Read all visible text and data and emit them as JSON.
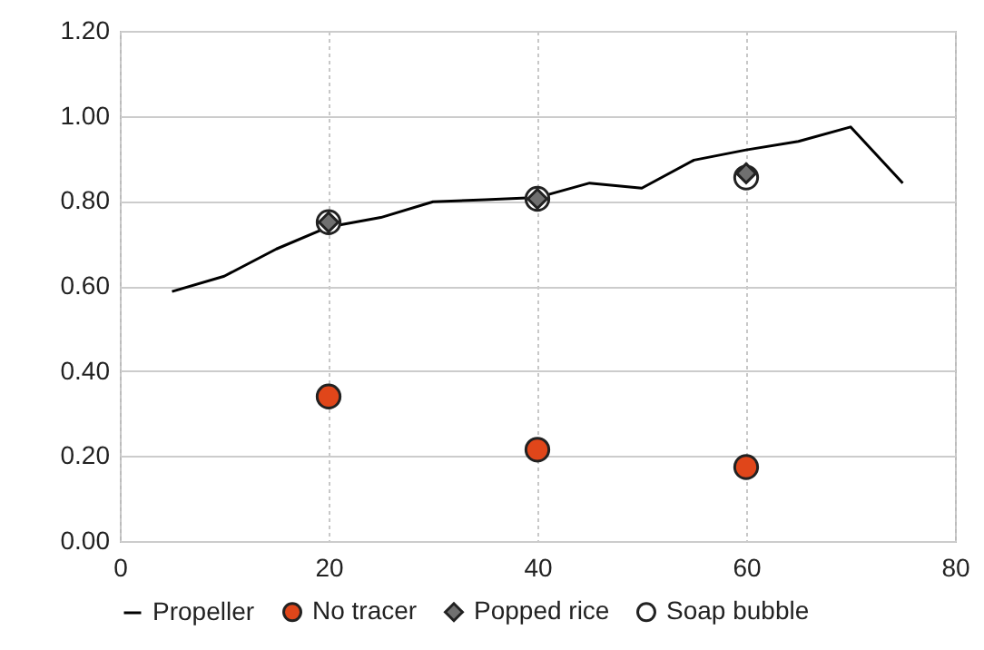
{
  "chart_data": {
    "type": "line",
    "xlim": [
      0,
      80
    ],
    "xticks": [
      0,
      20,
      40,
      60,
      80
    ],
    "ylim": [
      0,
      1.2
    ],
    "yticks": [
      {
        "value": 0,
        "label": "0.00"
      },
      {
        "value": 0.2,
        "label": "0.20"
      },
      {
        "value": 0.4,
        "label": "0.40"
      },
      {
        "value": 0.6,
        "label": "0.60"
      },
      {
        "value": 0.8,
        "label": "0.80"
      },
      {
        "value": 1,
        "label": "1.00"
      },
      {
        "value": 1.2,
        "label": "1.20"
      }
    ],
    "grid": true,
    "legend": "bottom",
    "series": [
      {
        "name": "Propeller",
        "color": "#000000",
        "marker": "none",
        "x": [
          5,
          10,
          15,
          20,
          25,
          30,
          35,
          40,
          45,
          50,
          55,
          60,
          65,
          70,
          75
        ],
        "values": [
          0.587,
          0.623,
          0.687,
          0.739,
          0.761,
          0.798,
          0.803,
          0.808,
          0.842,
          0.83,
          0.896,
          0.92,
          0.94,
          0.974,
          0.842
        ]
      },
      {
        "name": "No tracer",
        "type": "scatter",
        "color": "#e0461a",
        "marker": "circle",
        "x": [
          20,
          40,
          60
        ],
        "values": [
          0.34,
          0.215,
          0.174
        ]
      },
      {
        "name": "Popped rice",
        "type": "scatter",
        "color": "#707070",
        "marker": "diamond",
        "x": [
          20,
          40,
          60
        ],
        "values": [
          0.75,
          0.805,
          0.865
        ]
      },
      {
        "name": "Soap bubble",
        "type": "scatter",
        "color": "#ffffff",
        "marker": "circle",
        "x": [
          20,
          40,
          60
        ],
        "values": [
          0.75,
          0.805,
          0.855
        ]
      }
    ]
  }
}
